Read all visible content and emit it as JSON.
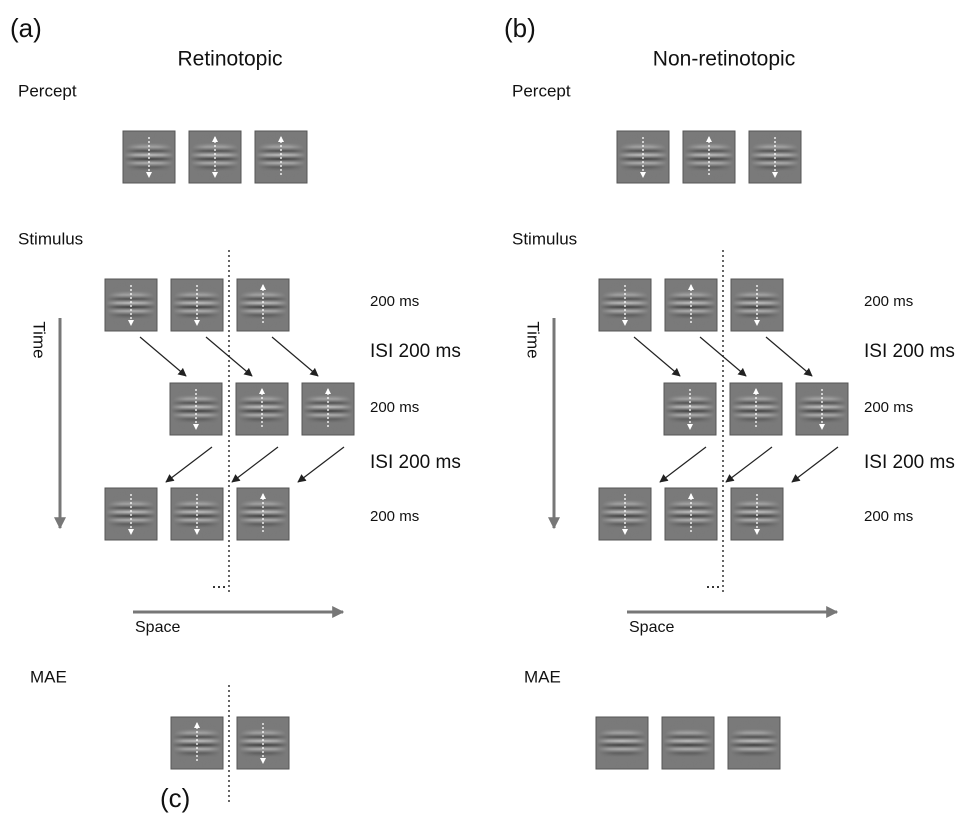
{
  "panels": [
    {
      "label": "(a)",
      "title": "Retinotopic",
      "percept": "Percept",
      "stimulus": "Stimulus",
      "time": "Time",
      "space": "Space",
      "durations": [
        "200 ms",
        "ISI 200 ms",
        "200 ms",
        "ISI 200 ms",
        "200 ms"
      ],
      "ellipsis": "...",
      "mae": "MAE"
    },
    {
      "label": "(b)",
      "title": "Non-retinotopic",
      "percept": "Percept",
      "stimulus": "Stimulus",
      "time": "Time",
      "space": "Space",
      "durations": [
        "200 ms",
        "ISI 200 ms",
        "200 ms",
        "ISI 200 ms",
        "200 ms"
      ],
      "ellipsis": "...",
      "mae": "MAE"
    }
  ],
  "footer_label": "(c)"
}
